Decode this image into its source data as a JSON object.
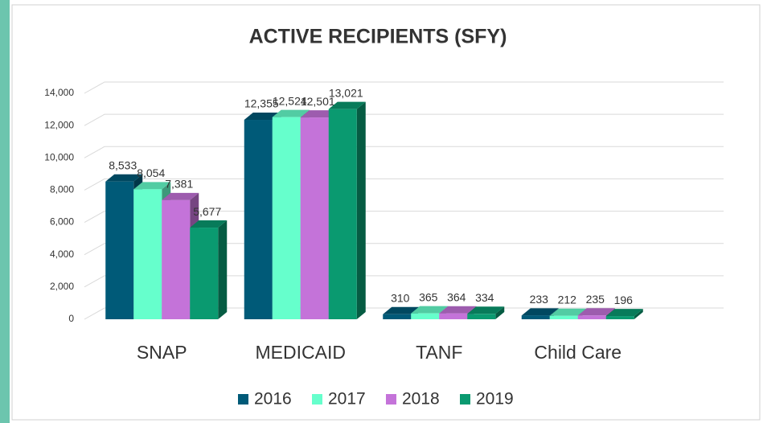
{
  "chart_data": {
    "type": "bar3d",
    "title": "ACTIVE RECIPIENTS (SFY)",
    "categories": [
      "SNAP",
      "MEDICAID",
      "TANF",
      "Child Care"
    ],
    "series": [
      {
        "name": "2016",
        "color": "#005a78",
        "values": [
          8533,
          12355,
          310,
          233
        ],
        "value_labels": [
          "8,533",
          "12,355",
          "310",
          "233"
        ]
      },
      {
        "name": "2017",
        "color": "#66ffcc",
        "values": [
          8054,
          12524,
          365,
          212
        ],
        "value_labels": [
          "8,054",
          "12,524",
          "365",
          "212"
        ]
      },
      {
        "name": "2018",
        "color": "#c473d9",
        "values": [
          7381,
          12501,
          364,
          235
        ],
        "value_labels": [
          "7,381",
          "12,501",
          "364",
          "235"
        ]
      },
      {
        "name": "2019",
        "color": "#0a9a70",
        "values": [
          5677,
          13021,
          334,
          196
        ],
        "value_labels": [
          "5,677",
          "13,021",
          "334",
          "196"
        ]
      }
    ],
    "ylim": [
      0,
      14000
    ],
    "yticks": [
      0,
      {
        "value": 2000,
        "label": "2,000"
      },
      {
        "value": 4000,
        "label": "4,000"
      },
      {
        "value": 6000,
        "label": "6,000"
      },
      {
        "value": 8000,
        "label": "8,000"
      },
      {
        "value": 10000,
        "label": "10,000"
      },
      {
        "value": 12000,
        "label": "12,000"
      },
      {
        "value": 14000,
        "label": "14,000"
      }
    ],
    "grid": true,
    "legend": "bottom"
  }
}
